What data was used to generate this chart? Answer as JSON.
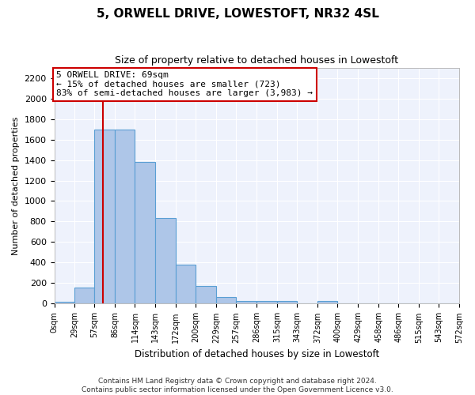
{
  "title": "5, ORWELL DRIVE, LOWESTOFT, NR32 4SL",
  "subtitle": "Size of property relative to detached houses in Lowestoft",
  "xlabel": "Distribution of detached houses by size in Lowestoft",
  "ylabel": "Number of detached properties",
  "bar_color": "#aec6e8",
  "bar_edge_color": "#5a9fd4",
  "background_color": "#eef2fc",
  "grid_color": "#ffffff",
  "annotation_box_color": "#cc0000",
  "annotation_line1": "5 ORWELL DRIVE: 69sqm",
  "annotation_line2": "← 15% of detached houses are smaller (723)",
  "annotation_line3": "83% of semi-detached houses are larger (3,983) →",
  "vline_x": 69,
  "vline_color": "#cc0000",
  "bins": [
    0,
    29,
    57,
    86,
    114,
    143,
    172,
    200,
    229,
    257,
    286,
    315,
    343,
    372,
    400,
    429,
    458,
    486,
    515,
    543,
    572
  ],
  "bin_labels": [
    "0sqm",
    "29sqm",
    "57sqm",
    "86sqm",
    "114sqm",
    "143sqm",
    "172sqm",
    "200sqm",
    "229sqm",
    "257sqm",
    "286sqm",
    "315sqm",
    "343sqm",
    "372sqm",
    "400sqm",
    "429sqm",
    "458sqm",
    "486sqm",
    "515sqm",
    "543sqm",
    "572sqm"
  ],
  "bar_heights": [
    15,
    155,
    1700,
    1700,
    1380,
    835,
    380,
    170,
    65,
    30,
    25,
    25,
    0,
    25,
    0,
    0,
    0,
    0,
    0,
    0
  ],
  "ylim": [
    0,
    2300
  ],
  "yticks": [
    0,
    200,
    400,
    600,
    800,
    1000,
    1200,
    1400,
    1600,
    1800,
    2000,
    2200
  ],
  "footer_line1": "Contains HM Land Registry data © Crown copyright and database right 2024.",
  "footer_line2": "Contains public sector information licensed under the Open Government Licence v3.0."
}
